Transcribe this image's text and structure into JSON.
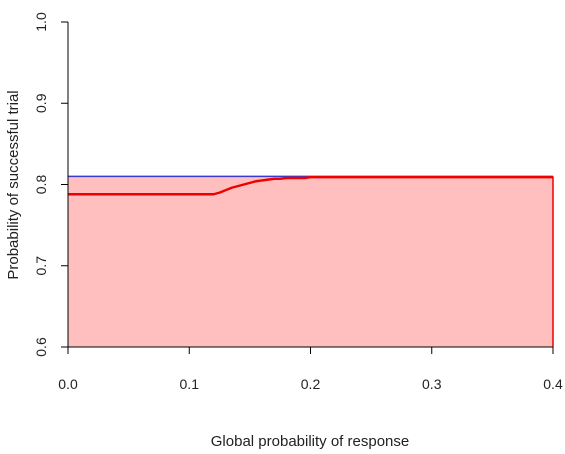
{
  "chart_data": {
    "type": "area",
    "title": "",
    "xlabel": "Global probability of response",
    "ylabel": "Probability of successful trial",
    "xlim": [
      0.0,
      0.4
    ],
    "ylim": [
      0.6,
      1.0
    ],
    "x_ticks": [
      "0.0",
      "0.1",
      "0.2",
      "0.3",
      "0.4"
    ],
    "y_ticks": [
      "0.6",
      "0.7",
      "0.8",
      "0.9",
      "1.0"
    ],
    "grid": false,
    "legend": "none",
    "colors": {
      "fill": "#ffbfbf",
      "curve": "#ee0000",
      "reference": "#3a3ad0",
      "axis": "#000000"
    },
    "series": [
      {
        "role": "curve",
        "x": [
          0.0,
          0.12,
          0.125,
          0.13,
          0.135,
          0.14,
          0.145,
          0.15,
          0.155,
          0.16,
          0.165,
          0.17,
          0.175,
          0.18,
          0.185,
          0.19,
          0.195,
          0.2,
          0.4
        ],
        "y": [
          0.788,
          0.788,
          0.79,
          0.793,
          0.796,
          0.798,
          0.8,
          0.802,
          0.804,
          0.805,
          0.806,
          0.807,
          0.807,
          0.808,
          0.808,
          0.808,
          0.808,
          0.809,
          0.809
        ]
      },
      {
        "role": "reference",
        "x": [
          0.0,
          0.4
        ],
        "y": [
          0.81,
          0.81
        ]
      }
    ]
  }
}
